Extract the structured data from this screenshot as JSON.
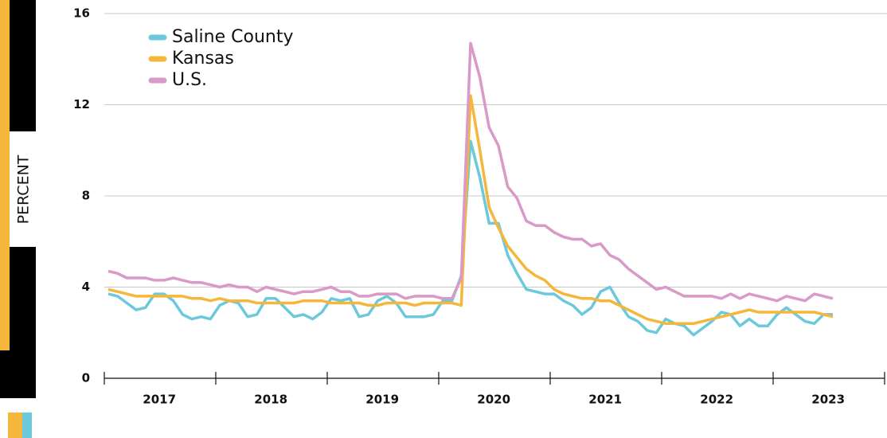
{
  "chart_data": {
    "type": "line",
    "y_label": "PERCENT",
    "categories": [
      null,
      null,
      null,
      null,
      null,
      null,
      "2017",
      null,
      null,
      null,
      null,
      null,
      null,
      null,
      null,
      null,
      null,
      null,
      "2018",
      null,
      null,
      null,
      null,
      null,
      null,
      null,
      null,
      null,
      null,
      null,
      "2019",
      null,
      null,
      null,
      null,
      null,
      null,
      null,
      null,
      null,
      null,
      null,
      "2020",
      null,
      null,
      null,
      null,
      null,
      null,
      null,
      null,
      null,
      null,
      null,
      "2021",
      null,
      null,
      null,
      null,
      null,
      null,
      null,
      null,
      null,
      null,
      null,
      "2022",
      null,
      null,
      null,
      null,
      null,
      null,
      null,
      null,
      null,
      null,
      null,
      "2023"
    ],
    "series": [
      {
        "name": "Saline County",
        "color": "#6cc9dc",
        "values": [
          3.7,
          3.6,
          3.3,
          3.0,
          3.1,
          3.7,
          3.7,
          3.4,
          2.8,
          2.6,
          2.7,
          2.6,
          3.2,
          3.4,
          3.3,
          2.7,
          2.8,
          3.5,
          3.5,
          3.1,
          2.7,
          2.8,
          2.6,
          2.9,
          3.5,
          3.4,
          3.5,
          2.7,
          2.8,
          3.4,
          3.6,
          3.3,
          2.7,
          2.7,
          2.7,
          2.8,
          3.4,
          3.4,
          4.5,
          10.4,
          8.8,
          6.8,
          6.8,
          5.4,
          4.6,
          3.9,
          3.8,
          3.7,
          3.7,
          3.4,
          3.2,
          2.8,
          3.1,
          3.8,
          4.0,
          3.3,
          2.7,
          2.5,
          2.1,
          2.0,
          2.6,
          2.4,
          2.3,
          1.9,
          2.2,
          2.5,
          2.9,
          2.8,
          2.3,
          2.6,
          2.3,
          2.3,
          2.8,
          3.1,
          2.8,
          2.5,
          2.4,
          2.8,
          2.8
        ]
      },
      {
        "name": "Kansas",
        "color": "#f5b73b",
        "values": [
          3.9,
          3.8,
          3.7,
          3.6,
          3.6,
          3.6,
          3.6,
          3.6,
          3.6,
          3.5,
          3.5,
          3.4,
          3.5,
          3.4,
          3.4,
          3.4,
          3.3,
          3.3,
          3.3,
          3.3,
          3.3,
          3.4,
          3.4,
          3.4,
          3.3,
          3.3,
          3.3,
          3.3,
          3.2,
          3.2,
          3.3,
          3.3,
          3.3,
          3.2,
          3.3,
          3.3,
          3.3,
          3.3,
          3.2,
          12.4,
          10.0,
          7.5,
          6.6,
          5.8,
          5.3,
          4.8,
          4.5,
          4.3,
          3.9,
          3.7,
          3.6,
          3.5,
          3.5,
          3.4,
          3.4,
          3.2,
          3.0,
          2.8,
          2.6,
          2.5,
          2.4,
          2.4,
          2.4,
          2.4,
          2.5,
          2.6,
          2.7,
          2.8,
          2.9,
          3.0,
          2.9,
          2.9,
          2.9,
          2.9,
          2.9,
          2.9,
          2.9,
          2.8,
          2.7
        ]
      },
      {
        "name": "U.S.",
        "color": "#d99ac8",
        "values": [
          4.7,
          4.6,
          4.4,
          4.4,
          4.4,
          4.3,
          4.3,
          4.4,
          4.3,
          4.2,
          4.2,
          4.1,
          4.0,
          4.1,
          4.0,
          4.0,
          3.8,
          4.0,
          3.9,
          3.8,
          3.7,
          3.8,
          3.8,
          3.9,
          4.0,
          3.8,
          3.8,
          3.6,
          3.6,
          3.7,
          3.7,
          3.7,
          3.5,
          3.6,
          3.6,
          3.6,
          3.5,
          3.5,
          4.4,
          14.7,
          13.2,
          11.0,
          10.2,
          8.4,
          7.9,
          6.9,
          6.7,
          6.7,
          6.4,
          6.2,
          6.1,
          6.1,
          5.8,
          5.9,
          5.4,
          5.2,
          4.8,
          4.5,
          4.2,
          3.9,
          4.0,
          3.8,
          3.6,
          3.6,
          3.6,
          3.6,
          3.5,
          3.7,
          3.5,
          3.7,
          3.6,
          3.5,
          3.4,
          3.6,
          3.5,
          3.4,
          3.7,
          3.6,
          3.5
        ]
      }
    ],
    "ylim": [
      0,
      16
    ],
    "yticks": [
      0,
      4,
      8,
      12,
      16
    ],
    "grid": true
  }
}
